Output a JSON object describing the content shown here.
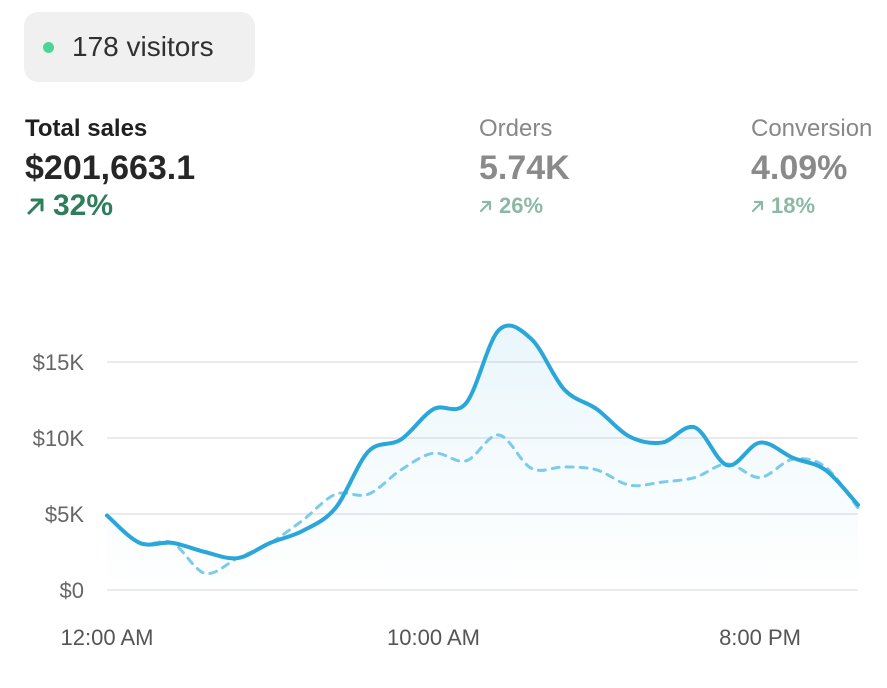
{
  "visitors": {
    "label": "178 visitors",
    "dot_color": "#4fd39a"
  },
  "metrics": [
    {
      "title": "Total sales",
      "value": "$201,663.1",
      "change": "32%",
      "icon": "arrow-up-right-icon"
    },
    {
      "title": "Orders",
      "value": "5.74K",
      "change": "26%",
      "icon": "arrow-up-right-icon"
    },
    {
      "title": "Conversion",
      "value": "4.09%",
      "change": "18%",
      "icon": "arrow-up-right-icon"
    }
  ],
  "chart_data": {
    "type": "line",
    "ylim": [
      0,
      17000
    ],
    "yticks": [
      0,
      5000,
      10000,
      15000
    ],
    "ytick_labels": [
      "$0",
      "$5K",
      "$10K",
      "$15K"
    ],
    "xtick_labels": [
      {
        "label": "12:00 AM",
        "index": 0
      },
      {
        "label": "10:00 AM",
        "index": 10
      },
      {
        "label": "8:00 PM",
        "index": 20
      }
    ],
    "grid": true,
    "series": [
      {
        "style": "solid",
        "color": "#2aa6d8",
        "values": [
          4900,
          3100,
          3100,
          2500,
          2100,
          3100,
          3900,
          5400,
          9100,
          9900,
          11900,
          12300,
          17100,
          16500,
          13200,
          11900,
          10100,
          9700,
          10700,
          8200,
          9700,
          8700,
          7900,
          5600
        ]
      },
      {
        "style": "dashed",
        "color": "#7ccbe8",
        "values": [
          4900,
          3100,
          3100,
          1100,
          2100,
          3100,
          4600,
          6300,
          6300,
          7900,
          9000,
          8500,
          10200,
          8000,
          8100,
          7900,
          6900,
          7100,
          7400,
          8300,
          7400,
          8600,
          8100,
          5400
        ]
      }
    ]
  }
}
